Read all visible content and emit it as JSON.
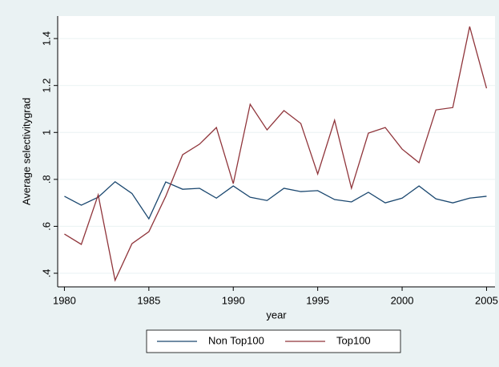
{
  "chart_data": {
    "type": "line",
    "x": [
      1980,
      1981,
      1982,
      1983,
      1984,
      1985,
      1986,
      1987,
      1988,
      1989,
      1990,
      1991,
      1992,
      1993,
      1994,
      1995,
      1996,
      1997,
      1998,
      1999,
      2000,
      2001,
      2002,
      2003,
      2004,
      2005
    ],
    "series": [
      {
        "name": "Non Top100",
        "color": "#1a476f",
        "values": [
          0.728,
          0.69,
          0.724,
          0.79,
          0.74,
          0.632,
          0.789,
          0.758,
          0.762,
          0.72,
          0.772,
          0.724,
          0.71,
          0.762,
          0.748,
          0.752,
          0.714,
          0.704,
          0.745,
          0.7,
          0.72,
          0.772,
          0.717,
          0.7,
          0.72,
          0.728
        ]
      },
      {
        "name": "Top100",
        "color": "#90353b",
        "values": [
          0.567,
          0.523,
          0.734,
          0.37,
          0.526,
          0.577,
          0.728,
          0.905,
          0.95,
          1.021,
          0.782,
          1.12,
          1.011,
          1.093,
          1.038,
          0.823,
          1.052,
          0.762,
          0.997,
          1.021,
          0.929,
          0.871,
          1.096,
          1.106,
          1.451,
          1.188
        ]
      }
    ],
    "xlabel": "year",
    "ylabel": "Average selectivitygrad",
    "xlim": [
      1979.6,
      2005.5
    ],
    "xticks": [
      1980,
      1985,
      1990,
      1995,
      2000,
      2005
    ],
    "ylim": [
      0.342,
      1.496
    ],
    "yticks": [
      {
        "value": 0.4,
        "label": ".4"
      },
      {
        "value": 0.6,
        "label": ".6"
      },
      {
        "value": 0.8,
        "label": ".8"
      },
      1,
      1.2,
      1.4
    ],
    "grid": true,
    "legend": "bottom"
  }
}
